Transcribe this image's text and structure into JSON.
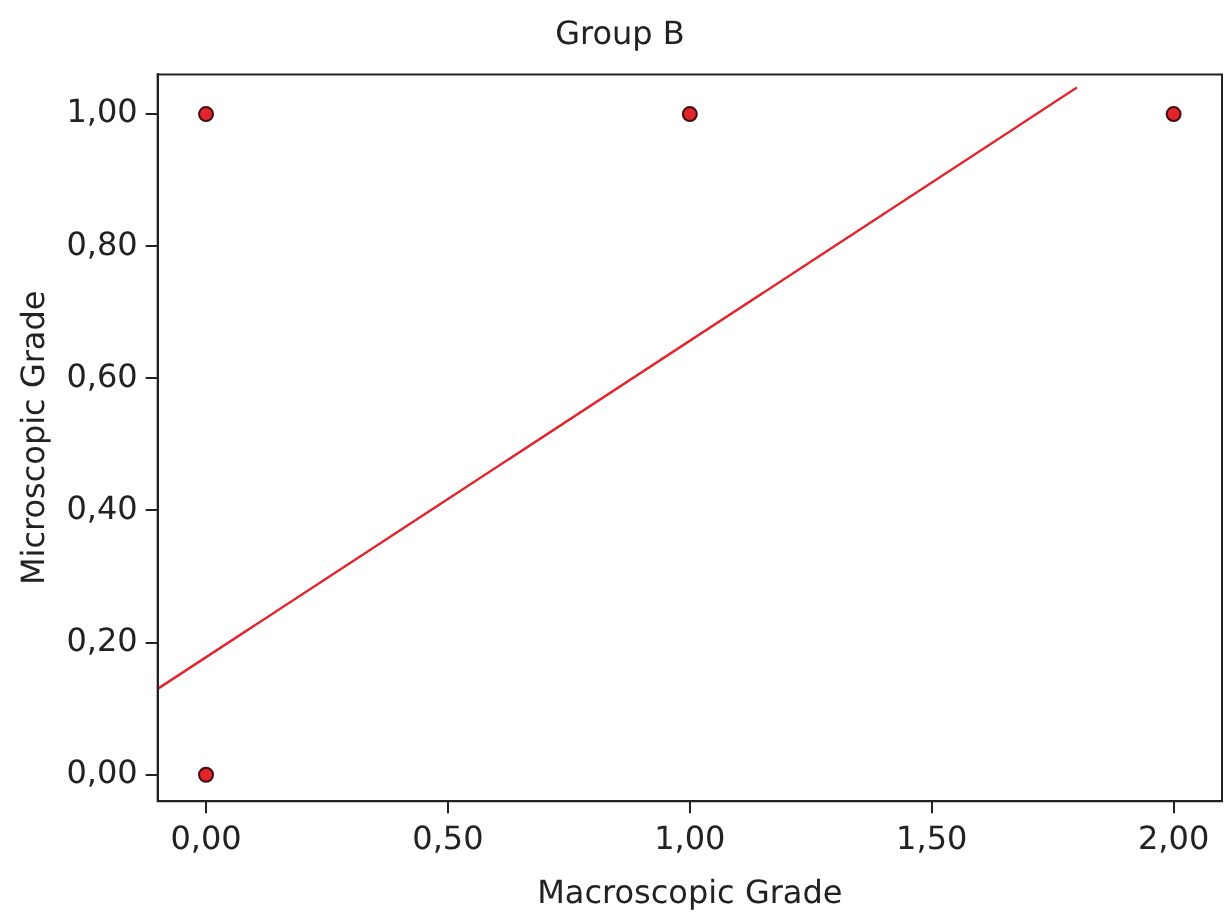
{
  "chart_data": {
    "type": "scatter",
    "title": "Group B",
    "xlabel": "Macroscopic Grade",
    "ylabel": "Microscopic Grade",
    "xlim": [
      -0.1,
      2.1
    ],
    "ylim": [
      -0.04,
      1.06
    ],
    "xticks": [
      {
        "value": 0,
        "label": "0,00"
      },
      {
        "value": 0.5,
        "label": "0,50"
      },
      {
        "value": 1,
        "label": "1,00"
      },
      {
        "value": 1.5,
        "label": "1,50"
      },
      {
        "value": 2,
        "label": "2,00"
      }
    ],
    "yticks": [
      {
        "value": 0,
        "label": "0,00"
      },
      {
        "value": 0.2,
        "label": "0,20"
      },
      {
        "value": 0.4,
        "label": "0,40"
      },
      {
        "value": 0.6,
        "label": "0,60"
      },
      {
        "value": 0.8,
        "label": "0,80"
      },
      {
        "value": 1,
        "label": "1,00"
      }
    ],
    "grid": false,
    "legend": false,
    "marker": "circle",
    "series": [
      {
        "color": "#e3242b",
        "x": [
          0,
          0,
          1,
          2
        ],
        "values": [
          0,
          1,
          1,
          1
        ]
      },
      {
        "type": "line",
        "color": "#e3242b",
        "x": [
          -0.1,
          1.8
        ],
        "values": [
          0.13,
          1.04
        ],
        "marker": "none",
        "line_style": "solid"
      }
    ]
  }
}
